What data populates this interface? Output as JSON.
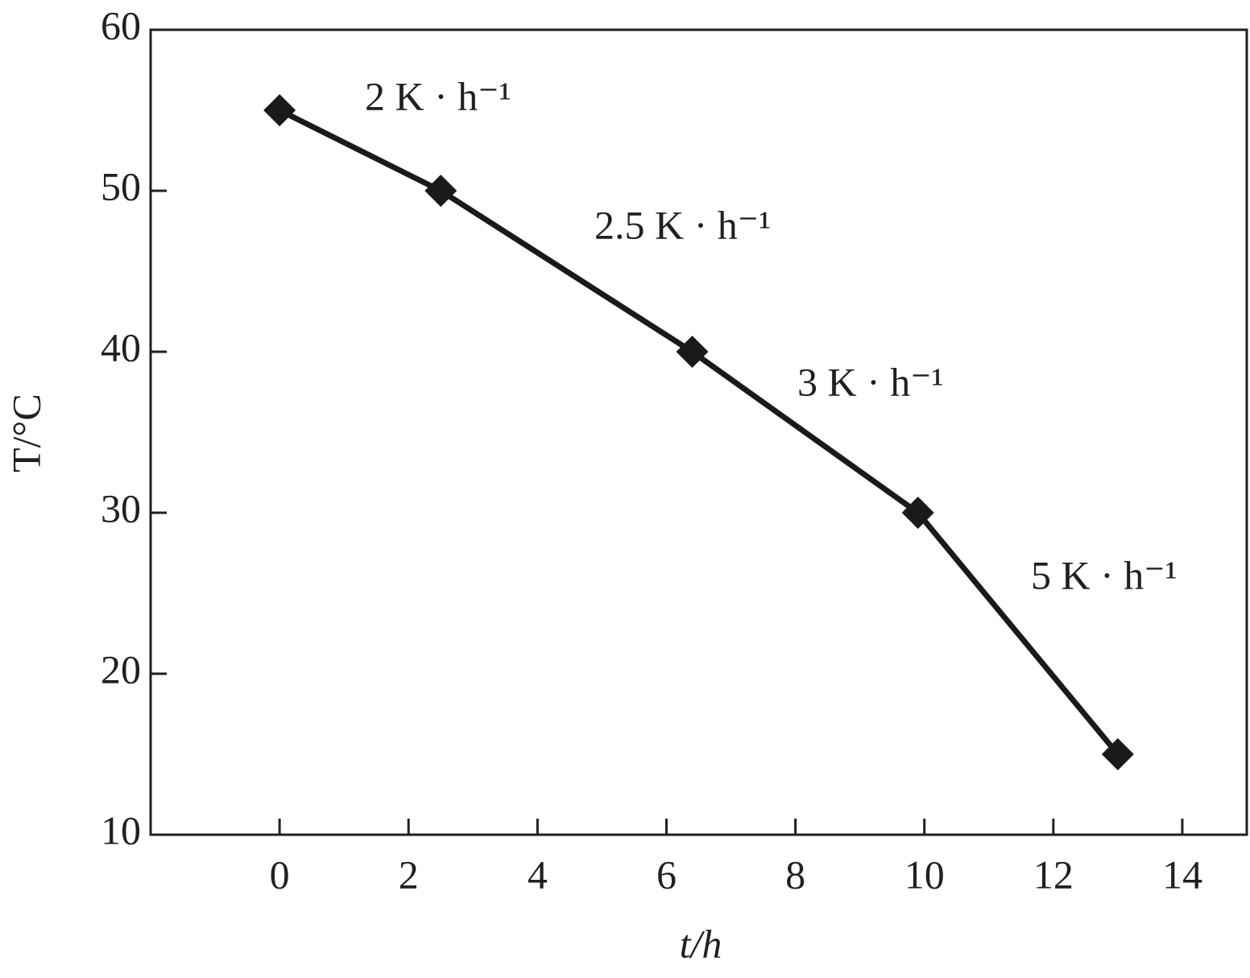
{
  "chart_data": {
    "type": "line",
    "x_label": "t/h",
    "y_label": "T/°C",
    "x": [
      0,
      2.5,
      6.4,
      9.9,
      13
    ],
    "series": [
      {
        "color": "#1a1a1a",
        "values": [
          55,
          50,
          40,
          30,
          15
        ]
      }
    ],
    "xlim": [
      -2,
      15
    ],
    "ylim": [
      10,
      60
    ],
    "xticks": [
      0,
      2,
      4,
      6,
      8,
      10,
      12,
      14
    ],
    "yticks": [
      10,
      20,
      30,
      40,
      50,
      60
    ],
    "annotations": [
      "2 K · h⁻¹",
      "2.5 K · h⁻¹",
      "3 K · h⁻¹",
      "5 K · h⁻¹"
    ]
  }
}
